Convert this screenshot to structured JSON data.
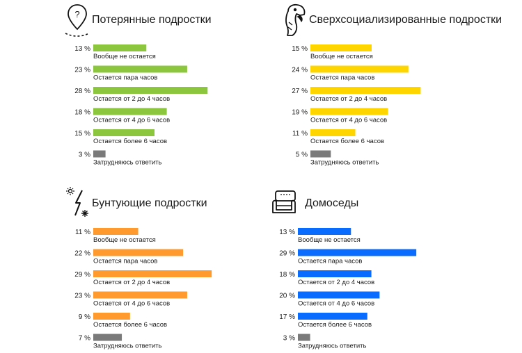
{
  "chart_data": [
    {
      "type": "bar",
      "orientation": "horizontal",
      "title": "Потерянные подростки",
      "icon": "map-pin-question-icon",
      "color": "#8cc63f",
      "categories": [
        "Вообще не остается",
        "Остается пара часов",
        "Остается от 2 до 4 часов",
        "Остается от 4 до 6 часов",
        "Остается более 6 часов",
        "Затрудняюсь ответить"
      ],
      "values": [
        13,
        23,
        28,
        18,
        15,
        3
      ],
      "value_labels": [
        "13 %",
        "23 %",
        "28 %",
        "18 %",
        "15 %",
        "3 %"
      ],
      "unit": "%",
      "xlim": [
        0,
        30
      ],
      "grid": false
    },
    {
      "type": "bar",
      "orientation": "horizontal",
      "title": "Сверхсоциализированные подростки",
      "icon": "parrot-icon",
      "color": "#ffd500",
      "categories": [
        "Вообще не остается",
        "Остается пара часов",
        "Остается от 2 до 4 часов",
        "Остается от 4 до 6 часов",
        "Остается более 6 часов",
        "Затрудняюсь ответить"
      ],
      "values": [
        15,
        24,
        27,
        19,
        11,
        5
      ],
      "value_labels": [
        "15 %",
        "24 %",
        "27 %",
        "19 %",
        "11 %",
        "5 %"
      ],
      "unit": "%",
      "xlim": [
        0,
        30
      ],
      "grid": false
    },
    {
      "type": "bar",
      "orientation": "horizontal",
      "title": "Бунтующие подростки",
      "icon": "lightning-sparks-icon",
      "color": "#ff9a2e",
      "categories": [
        "Вообще не остается",
        "Остается пара часов",
        "Остается от 2 до 4 часов",
        "Остается от 4 до 6 часов",
        "Остается более 6 часов",
        "Затрудняюсь ответить"
      ],
      "values": [
        11,
        22,
        29,
        23,
        9,
        7
      ],
      "value_labels": [
        "11 %",
        "22 %",
        "29 %",
        "23 %",
        "9 %",
        "7 %"
      ],
      "unit": "%",
      "xlim": [
        0,
        30
      ],
      "grid": false
    },
    {
      "type": "bar",
      "orientation": "horizontal",
      "title": "Домоседы",
      "icon": "armchair-icon",
      "color": "#0a6cff",
      "categories": [
        "Вообще не остается",
        "Остается пара часов",
        "Остается от 2 до 4 часов",
        "Остается от 4 до 6 часов",
        "Остается более 6 часов",
        "Затрудняюсь ответить"
      ],
      "values": [
        13,
        29,
        18,
        20,
        17,
        3
      ],
      "value_labels": [
        "13 %",
        "29 %",
        "18 %",
        "20 %",
        "17 %",
        "3 %"
      ],
      "unit": "%",
      "xlim": [
        0,
        30
      ],
      "grid": false
    }
  ],
  "colors": {
    "unsure_bar": "#7a7a7a"
  }
}
